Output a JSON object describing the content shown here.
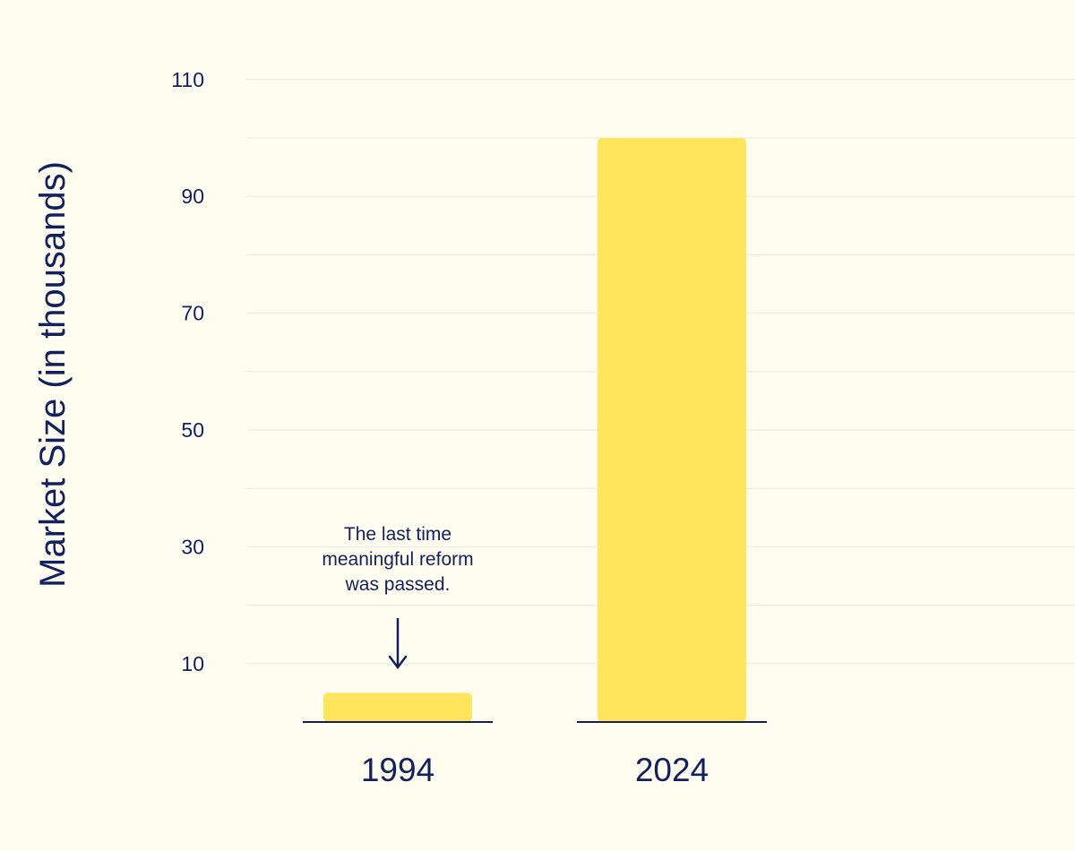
{
  "chart_data": {
    "type": "bar",
    "title": "",
    "xlabel": "",
    "ylabel": "Market Size (in thousands)",
    "categories": [
      "1994",
      "2024"
    ],
    "values": [
      5,
      100
    ],
    "ylim": [
      0,
      110
    ],
    "yticks": [
      10,
      30,
      50,
      70,
      90,
      110
    ],
    "grid": true,
    "annotation": {
      "category": "1994",
      "lines": [
        "The last time",
        "meaningful reform",
        "was passed."
      ]
    },
    "colors": {
      "bar": "#ffe55c",
      "text": "#12205e",
      "grid": "#eeeee4",
      "baseline": "#12205e",
      "background": "#fffdf0"
    }
  }
}
